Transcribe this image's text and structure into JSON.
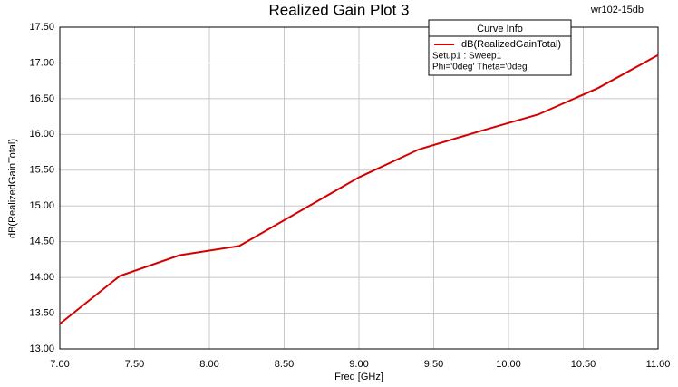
{
  "chart_data": {
    "type": "line",
    "title": "Realized Gain Plot 3",
    "annotation": "wr102-15db",
    "x_label": "Freq [GHz]",
    "y_label": "dB(RealizedGainTotal)",
    "legend_title": "Curve Info",
    "legend_lines": [
      "Setup1 : Sweep1",
      "Phi='0deg' Theta='0deg'"
    ],
    "x": [
      7.0,
      7.4,
      7.8,
      8.2,
      8.6,
      9.0,
      9.4,
      9.8,
      10.2,
      10.6,
      11.0
    ],
    "series": [
      {
        "name": "dB(RealizedGainTotal)",
        "color": "#d40000",
        "values": [
          13.35,
          14.02,
          14.31,
          14.44,
          14.92,
          15.4,
          15.79,
          16.04,
          16.28,
          16.65,
          17.11
        ]
      }
    ],
    "xlim": [
      7.0,
      11.0
    ],
    "ylim": [
      13.0,
      17.5
    ],
    "xticks": [
      {
        "value": 7,
        "label": "7.00"
      },
      {
        "value": 7.5,
        "label": "7.50"
      },
      {
        "value": 8,
        "label": "8.00"
      },
      {
        "value": 8.5,
        "label": "8.50"
      },
      {
        "value": 9,
        "label": "9.00"
      },
      {
        "value": 9.5,
        "label": "9.50"
      },
      {
        "value": 10,
        "label": "10.00"
      },
      {
        "value": 10.5,
        "label": "10.50"
      },
      {
        "value": 11,
        "label": "11.00"
      }
    ],
    "yticks": [
      {
        "value": 13,
        "label": "13.00"
      },
      {
        "value": 13.5,
        "label": "13.50"
      },
      {
        "value": 14,
        "label": "14.00"
      },
      {
        "value": 14.5,
        "label": "14.50"
      },
      {
        "value": 15,
        "label": "15.00"
      },
      {
        "value": 15.5,
        "label": "15.50"
      },
      {
        "value": 16,
        "label": "16.00"
      },
      {
        "value": 16.5,
        "label": "16.50"
      },
      {
        "value": 17,
        "label": "17.00"
      },
      {
        "value": 17.5,
        "label": "17.50"
      }
    ],
    "grid": true
  }
}
